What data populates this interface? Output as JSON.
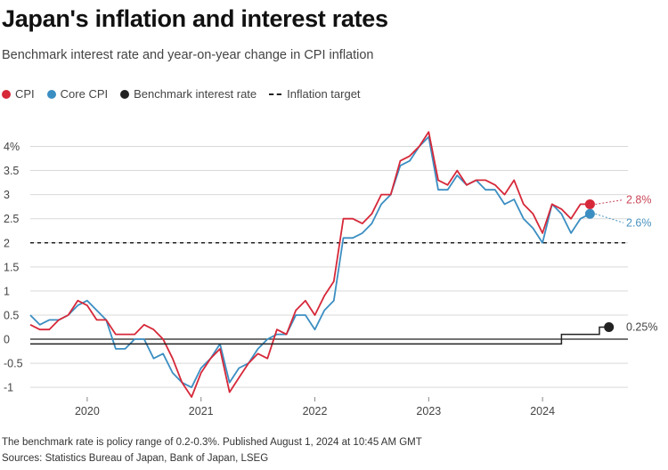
{
  "header": {
    "title": "Japan's inflation and interest rates",
    "subtitle": "Benchmark interest rate and year-on-year change in CPI inflation"
  },
  "legend": {
    "cpi": "CPI",
    "core_cpi": "Core CPI",
    "benchmark": "Benchmark interest rate",
    "target": "Inflation target"
  },
  "colors": {
    "cpi": "#d62839",
    "core_cpi": "#3b8ec2",
    "benchmark": "#222222",
    "grid": "#d9d9d9"
  },
  "footer": {
    "note": "The benchmark rate is policy range of 0.2-0.3%. Published August 1, 2024 at 10:45 AM GMT",
    "sources": "Sources: Statistics Bureau of Japan, Bank of Japan, LSEG"
  },
  "chart_data": {
    "type": "line",
    "title": "Japan's inflation and interest rates",
    "subtitle": "Benchmark interest rate and year-on-year change in CPI inflation",
    "xlabel": "",
    "ylabel": "",
    "xlim": [
      "2019-07",
      "2024-10"
    ],
    "ylim": [
      -1.2,
      4.6
    ],
    "y_ticks": [
      -1,
      -0.5,
      0,
      0.5,
      1,
      1.5,
      2,
      2.5,
      3,
      3.5,
      4
    ],
    "y_tick_labels": [
      "-1",
      "-0.5",
      "0",
      "0.5",
      "1",
      "1.5",
      "2",
      "2.5",
      "3",
      "3.5",
      "4%"
    ],
    "x_ticks": [
      "2020-01",
      "2021-01",
      "2022-01",
      "2023-01",
      "2024-01"
    ],
    "x_tick_labels": [
      "2020",
      "2021",
      "2022",
      "2023",
      "2024"
    ],
    "grid": "horizontal",
    "legend_position": "top-left",
    "inflation_target": 2,
    "series": [
      {
        "name": "CPI",
        "months": [
          "2019-07",
          "2019-08",
          "2019-09",
          "2019-10",
          "2019-11",
          "2019-12",
          "2020-01",
          "2020-02",
          "2020-03",
          "2020-04",
          "2020-05",
          "2020-06",
          "2020-07",
          "2020-08",
          "2020-09",
          "2020-10",
          "2020-11",
          "2020-12",
          "2021-01",
          "2021-02",
          "2021-03",
          "2021-04",
          "2021-05",
          "2021-06",
          "2021-07",
          "2021-08",
          "2021-09",
          "2021-10",
          "2021-11",
          "2021-12",
          "2022-01",
          "2022-02",
          "2022-03",
          "2022-04",
          "2022-05",
          "2022-06",
          "2022-07",
          "2022-08",
          "2022-09",
          "2022-10",
          "2022-11",
          "2022-12",
          "2023-01",
          "2023-02",
          "2023-03",
          "2023-04",
          "2023-05",
          "2023-06",
          "2023-07",
          "2023-08",
          "2023-09",
          "2023-10",
          "2023-11",
          "2023-12",
          "2024-01",
          "2024-02",
          "2024-03",
          "2024-04",
          "2024-05",
          "2024-06"
        ],
        "values": [
          0.3,
          0.2,
          0.2,
          0.4,
          0.5,
          0.8,
          0.7,
          0.4,
          0.4,
          0.1,
          0.1,
          0.1,
          0.3,
          0.2,
          0.0,
          -0.4,
          -0.9,
          -1.2,
          -0.7,
          -0.4,
          -0.2,
          -1.1,
          -0.8,
          -0.5,
          -0.3,
          -0.4,
          0.2,
          0.1,
          0.6,
          0.8,
          0.5,
          0.9,
          1.2,
          2.5,
          2.5,
          2.4,
          2.6,
          3.0,
          3.0,
          3.7,
          3.8,
          4.0,
          4.3,
          3.3,
          3.2,
          3.5,
          3.2,
          3.3,
          3.3,
          3.2,
          3.0,
          3.3,
          2.8,
          2.6,
          2.2,
          2.8,
          2.7,
          2.5,
          2.8,
          2.8
        ],
        "end_label": "2.8%"
      },
      {
        "name": "Core CPI",
        "months": [
          "2019-07",
          "2019-08",
          "2019-09",
          "2019-10",
          "2019-11",
          "2019-12",
          "2020-01",
          "2020-02",
          "2020-03",
          "2020-04",
          "2020-05",
          "2020-06",
          "2020-07",
          "2020-08",
          "2020-09",
          "2020-10",
          "2020-11",
          "2020-12",
          "2021-01",
          "2021-02",
          "2021-03",
          "2021-04",
          "2021-05",
          "2021-06",
          "2021-07",
          "2021-08",
          "2021-09",
          "2021-10",
          "2021-11",
          "2021-12",
          "2022-01",
          "2022-02",
          "2022-03",
          "2022-04",
          "2022-05",
          "2022-06",
          "2022-07",
          "2022-08",
          "2022-09",
          "2022-10",
          "2022-11",
          "2022-12",
          "2023-01",
          "2023-02",
          "2023-03",
          "2023-04",
          "2023-05",
          "2023-06",
          "2023-07",
          "2023-08",
          "2023-09",
          "2023-10",
          "2023-11",
          "2023-12",
          "2024-01",
          "2024-02",
          "2024-03",
          "2024-04",
          "2024-05",
          "2024-06"
        ],
        "values": [
          0.5,
          0.3,
          0.4,
          0.4,
          0.5,
          0.7,
          0.8,
          0.6,
          0.4,
          -0.2,
          -0.2,
          0.0,
          0.0,
          -0.4,
          -0.3,
          -0.7,
          -0.9,
          -1.0,
          -0.6,
          -0.4,
          -0.1,
          -0.9,
          -0.6,
          -0.5,
          -0.2,
          0.0,
          0.1,
          0.1,
          0.5,
          0.5,
          0.2,
          0.6,
          0.8,
          2.1,
          2.1,
          2.2,
          2.4,
          2.8,
          3.0,
          3.6,
          3.7,
          4.0,
          4.2,
          3.1,
          3.1,
          3.4,
          3.2,
          3.3,
          3.1,
          3.1,
          2.8,
          2.9,
          2.5,
          2.3,
          2.0,
          2.8,
          2.6,
          2.2,
          2.5,
          2.6
        ],
        "end_label": "2.6%"
      },
      {
        "name": "Benchmark interest rate",
        "step": true,
        "months": [
          "2019-07",
          "2024-03",
          "2024-07",
          "2024-08"
        ],
        "values": [
          -0.1,
          0.1,
          0.25,
          0.25
        ],
        "end_label": "0.25%"
      }
    ]
  }
}
